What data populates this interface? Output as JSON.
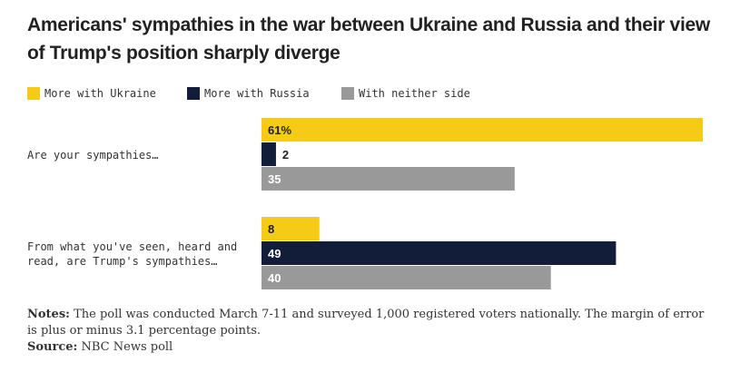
{
  "title": "Americans' sympathies in the war between Ukraine and Russia and their view of Trump's position sharply diverge",
  "legend": [
    {
      "label": "More with Ukraine",
      "color": "#f5cb17"
    },
    {
      "label": "More with Russia",
      "color": "#121d3a"
    },
    {
      "label": "With neither side",
      "color": "#999999"
    }
  ],
  "notes": {
    "notes_label": "Notes:",
    "notes_text": "The poll was conducted March 7-11 and surveyed 1,000 registered voters nationally. The margin of error is plus or minus 3.1 percentage points.",
    "source_label": "Source:",
    "source_text": "NBC News poll"
  },
  "chart_data": {
    "type": "bar",
    "orientation": "horizontal",
    "categories": [
      "Are your sympathies…",
      "From what you've seen, heard and read, are Trump's sympathies…"
    ],
    "series": [
      {
        "name": "More with Ukraine",
        "values": [
          61,
          8
        ],
        "labels": [
          "61%",
          "8"
        ],
        "color": "#f5cb17"
      },
      {
        "name": "More with Russia",
        "values": [
          2,
          49
        ],
        "labels": [
          "2",
          "49"
        ],
        "color": "#121d3a"
      },
      {
        "name": "With neither side",
        "values": [
          35,
          40
        ],
        "labels": [
          "35",
          "40"
        ],
        "color": "#999999"
      }
    ],
    "xlim": [
      0,
      61
    ]
  }
}
